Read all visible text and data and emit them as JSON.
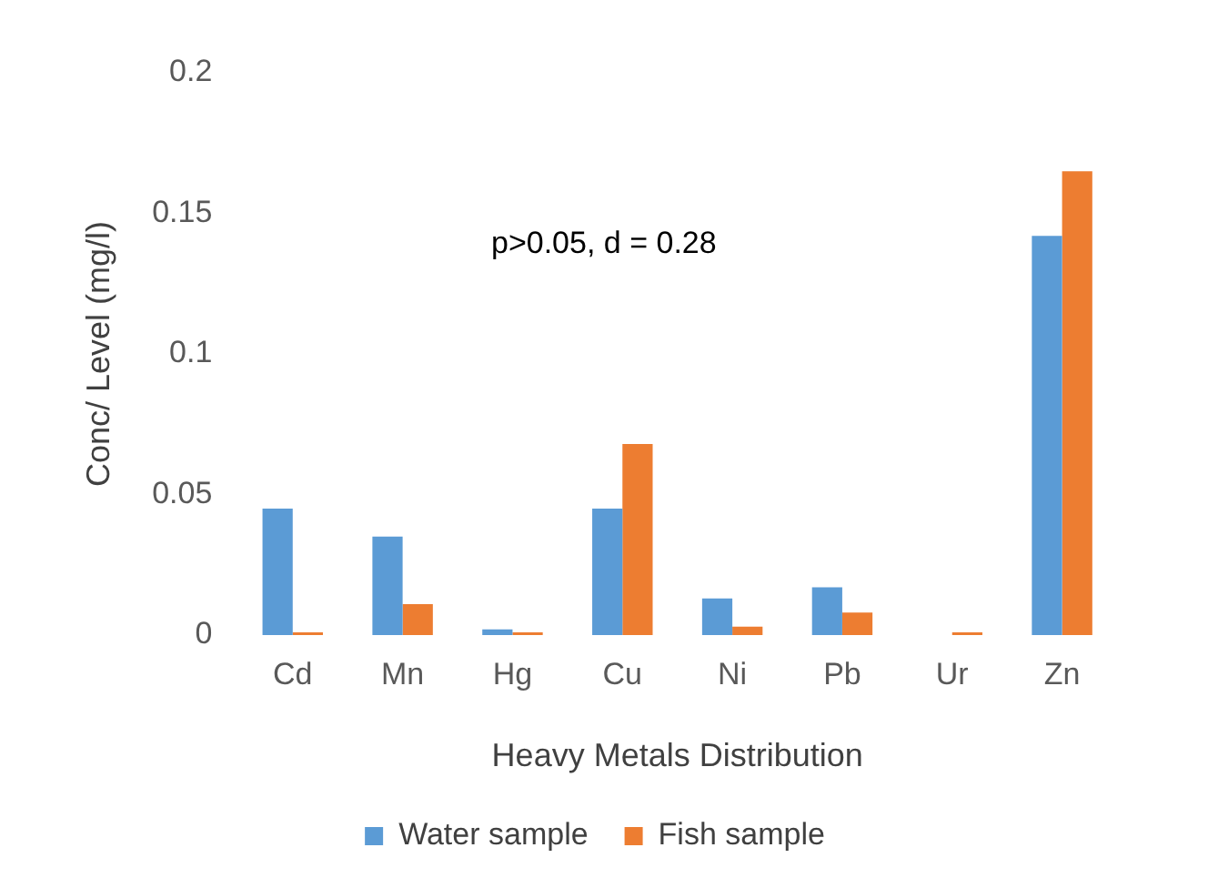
{
  "chart_data": {
    "type": "bar",
    "xlabel": "Heavy Metals Distribution",
    "ylabel": "Conc/ Level (mg/l)",
    "annotations": [
      "p>0.05, d = 0.28"
    ],
    "categories": [
      "Cd",
      "Mn",
      "Hg",
      "Cu",
      "Ni",
      "Pb",
      "Ur",
      "Zn"
    ],
    "series": [
      {
        "name": "Water sample",
        "color": "#5b9bd5",
        "values": [
          0.045,
          0.035,
          0.002,
          0.045,
          0.013,
          0.017,
          0,
          0.142
        ]
      },
      {
        "name": "Fish sample",
        "color": "#ed7d31",
        "values": [
          0.001,
          0.011,
          0.001,
          0.068,
          0.003,
          0.008,
          0.001,
          0.165
        ]
      }
    ],
    "ylim": [
      0,
      0.2
    ],
    "yticks": [
      0,
      0.05,
      0.1,
      0.15,
      0.2
    ],
    "grid": false,
    "legend": "bottom"
  }
}
